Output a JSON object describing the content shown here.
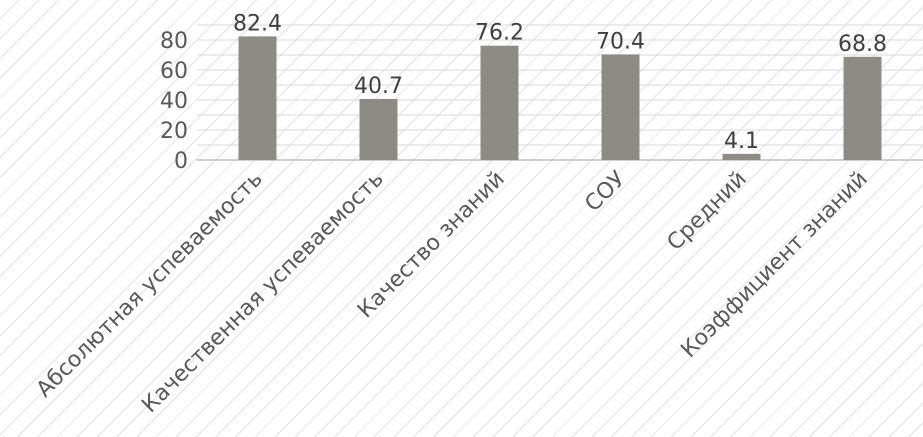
{
  "chart_data": {
    "type": "bar",
    "categories": [
      "Абсолютная успеваемость",
      "Качественная успеваемость",
      "Качество знаний",
      "СОУ",
      "Средний",
      "Коэффициент знаний"
    ],
    "values": [
      82.4,
      40.7,
      76.2,
      70.4,
      4.1,
      68.8
    ],
    "title": "",
    "xlabel": "",
    "ylabel": "",
    "ylim": [
      0,
      90
    ],
    "yticks": [
      0,
      20,
      40,
      60,
      80
    ],
    "grid": true,
    "legend": "none",
    "data_labels": true,
    "colors": {
      "bar": "#8c8c84",
      "grid": "#d9d9d9",
      "axis": "#bfbfbf"
    }
  }
}
